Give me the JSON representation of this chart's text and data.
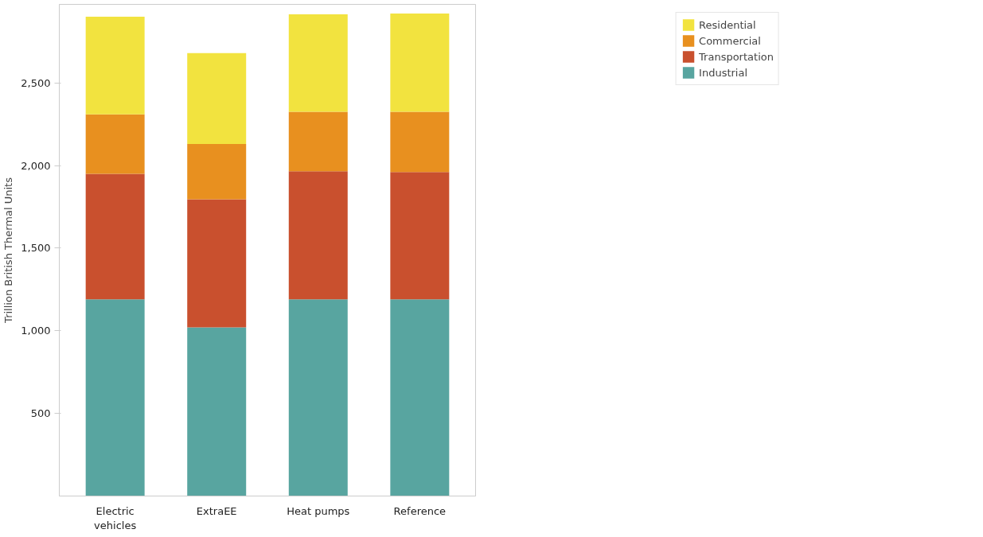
{
  "chart_data": {
    "type": "bar",
    "stacked": true,
    "ylabel": "Trillion British Thermal Units",
    "categories": [
      "Electric vehicles",
      "ExtraEE",
      "Heat pumps",
      "Reference"
    ],
    "series": [
      {
        "name": "Industrial",
        "color": "#58a5a0",
        "values": [
          1190,
          1020,
          1190,
          1190
        ]
      },
      {
        "name": "Transportation",
        "color": "#c9502e",
        "values": [
          760,
          775,
          775,
          770
        ]
      },
      {
        "name": "Commercial",
        "color": "#e8901f",
        "values": [
          360,
          335,
          360,
          365
        ]
      },
      {
        "name": "Residential",
        "color": "#f2e33f",
        "values": [
          590,
          550,
          590,
          595
        ]
      }
    ],
    "ylim": [
      0,
      2975
    ],
    "yticks": [
      {
        "value": 500,
        "label": "500"
      },
      {
        "value": 1000,
        "label": "1,000"
      },
      {
        "value": 1500,
        "label": "1,500"
      },
      {
        "value": 2000,
        "label": "2,000"
      },
      {
        "value": 2500,
        "label": "2,500"
      }
    ],
    "legend": "top right",
    "grid": false
  }
}
